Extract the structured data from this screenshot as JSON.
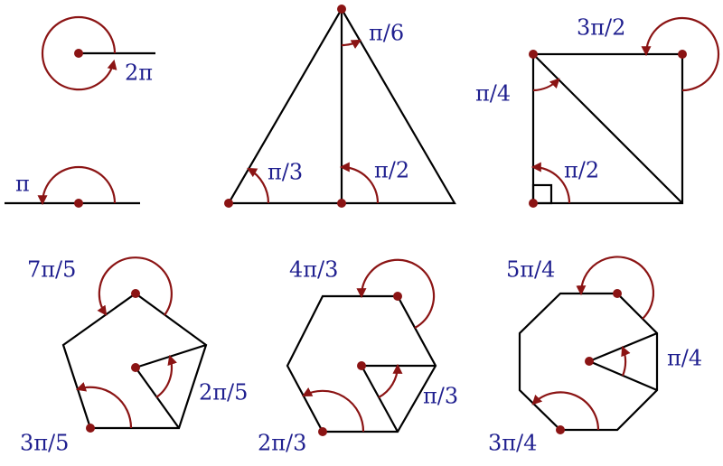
{
  "labels": [
    "2π",
    "π",
    "π/6",
    "π/3",
    "π/2",
    "3π/2",
    "π/4",
    "π/2",
    "7π/5",
    "2π/5",
    "3π/5",
    "4π/3",
    "π/3",
    "2π/3",
    "5π/4",
    "π/4",
    "3π/4"
  ]
}
